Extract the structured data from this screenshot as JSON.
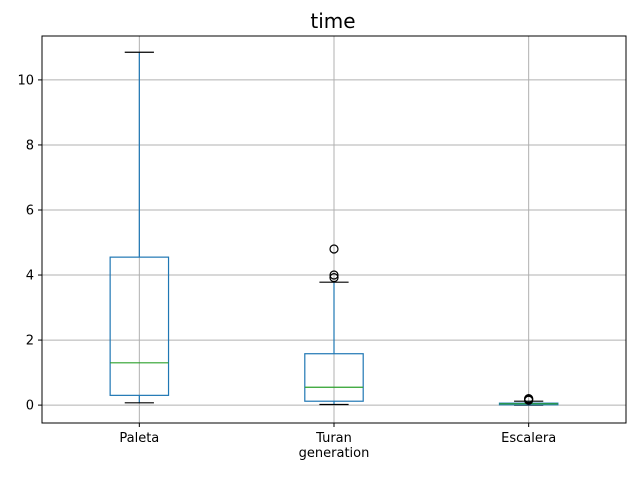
{
  "chart_data": {
    "type": "box",
    "title": "time",
    "xlabel": "",
    "ylabel": "",
    "ylim": [
      -0.55,
      11.35
    ],
    "yticks": [
      0,
      2,
      4,
      6,
      8,
      10
    ],
    "grid": true,
    "categories": [
      "Paleta",
      "Turan\ngeneration",
      "Escalera"
    ],
    "boxes": [
      {
        "label": "Paleta",
        "whisker_low": 0.07,
        "q1": 0.3,
        "median": 1.3,
        "q3": 4.55,
        "whisker_high": 10.85,
        "outliers": []
      },
      {
        "label": "Turan\ngeneration",
        "whisker_low": 0.02,
        "q1": 0.12,
        "median": 0.55,
        "q3": 1.58,
        "whisker_high": 3.78,
        "outliers": [
          3.92,
          4.0,
          4.8
        ]
      },
      {
        "label": "Escalera",
        "whisker_low": 0.0,
        "q1": 0.01,
        "median": 0.04,
        "q3": 0.06,
        "whisker_high": 0.12,
        "outliers": [
          0.15,
          0.18,
          0.2
        ]
      }
    ],
    "colors": {
      "box": "#1f77b4",
      "median": "#2ca02c",
      "whisker_cap": "#000000",
      "grid": "#b0b0b0",
      "outlier": "#000000"
    }
  }
}
